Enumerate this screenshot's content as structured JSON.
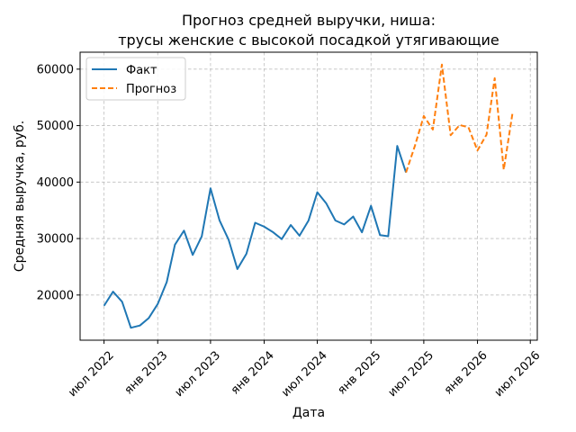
{
  "chart_data": {
    "type": "line",
    "title_lines": [
      "Прогноз средней выручки, ниша:",
      "трусы женские с высокой посадкой утягивающие"
    ],
    "xlabel": "Дата",
    "ylabel": "Средняя выручка, руб.",
    "x_ticks": [
      {
        "date": "2022-07-01",
        "label": "июл 2022"
      },
      {
        "date": "2023-01-01",
        "label": "янв 2023"
      },
      {
        "date": "2023-07-01",
        "label": "июл 2023"
      },
      {
        "date": "2024-01-01",
        "label": "янв 2024"
      },
      {
        "date": "2024-07-01",
        "label": "июл 2024"
      },
      {
        "date": "2025-01-01",
        "label": "янв 2025"
      },
      {
        "date": "2025-07-01",
        "label": "июл 2025"
      },
      {
        "date": "2026-01-01",
        "label": "янв 2026"
      },
      {
        "date": "2026-07-01",
        "label": "июл 2026"
      }
    ],
    "y_ticks": [
      20000,
      30000,
      40000,
      50000,
      60000
    ],
    "xlim": [
      "2022-04-10",
      "2026-07-25"
    ],
    "ylim": [
      12000,
      63000
    ],
    "grid": true,
    "legend_position": "top-left",
    "series": [
      {
        "name": "Факт",
        "color": "#1f77b4",
        "style": "solid",
        "points": [
          [
            "2022-07-01",
            18100
          ],
          [
            "2022-08-01",
            20600
          ],
          [
            "2022-09-01",
            18800
          ],
          [
            "2022-10-01",
            14200
          ],
          [
            "2022-11-01",
            14600
          ],
          [
            "2022-12-01",
            15900
          ],
          [
            "2023-01-01",
            18400
          ],
          [
            "2023-02-01",
            22300
          ],
          [
            "2023-03-01",
            28900
          ],
          [
            "2023-04-01",
            31400
          ],
          [
            "2023-05-01",
            27100
          ],
          [
            "2023-06-01",
            30400
          ],
          [
            "2023-07-01",
            38900
          ],
          [
            "2023-08-01",
            33200
          ],
          [
            "2023-09-01",
            29800
          ],
          [
            "2023-10-01",
            24600
          ],
          [
            "2023-11-01",
            27300
          ],
          [
            "2023-12-01",
            32800
          ],
          [
            "2024-01-01",
            32100
          ],
          [
            "2024-02-01",
            31100
          ],
          [
            "2024-03-01",
            29900
          ],
          [
            "2024-04-01",
            32400
          ],
          [
            "2024-05-01",
            30500
          ],
          [
            "2024-06-01",
            33200
          ],
          [
            "2024-07-01",
            38200
          ],
          [
            "2024-08-01",
            36200
          ],
          [
            "2024-09-01",
            33200
          ],
          [
            "2024-10-01",
            32500
          ],
          [
            "2024-11-01",
            33900
          ],
          [
            "2024-12-01",
            31100
          ],
          [
            "2025-01-01",
            35800
          ],
          [
            "2025-02-01",
            30600
          ],
          [
            "2025-03-01",
            30400
          ],
          [
            "2025-04-01",
            46400
          ],
          [
            "2025-05-01",
            41700
          ]
        ]
      },
      {
        "name": "Прогноз",
        "color": "#ff7f0e",
        "style": "dashed",
        "points": [
          [
            "2025-05-01",
            41700
          ],
          [
            "2025-06-01",
            46500
          ],
          [
            "2025-07-01",
            51700
          ],
          [
            "2025-08-01",
            49300
          ],
          [
            "2025-09-01",
            60800
          ],
          [
            "2025-10-01",
            48300
          ],
          [
            "2025-11-01",
            50100
          ],
          [
            "2025-12-01",
            49700
          ],
          [
            "2026-01-01",
            45600
          ],
          [
            "2026-02-01",
            48400
          ],
          [
            "2026-03-01",
            58400
          ],
          [
            "2026-04-01",
            42200
          ],
          [
            "2026-05-01",
            52200
          ]
        ]
      }
    ]
  }
}
